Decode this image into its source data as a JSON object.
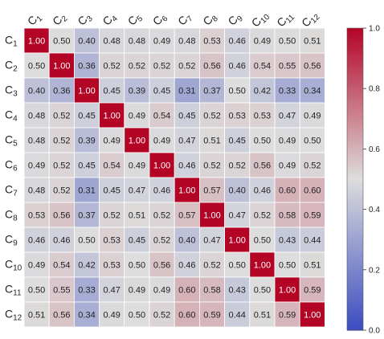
{
  "chart_data": {
    "type": "heatmap",
    "title": "",
    "xlabel": "",
    "ylabel": "",
    "labels": [
      {
        "base": "C",
        "sub": "1"
      },
      {
        "base": "C",
        "sub": "2"
      },
      {
        "base": "C",
        "sub": "3"
      },
      {
        "base": "C",
        "sub": "4"
      },
      {
        "base": "C",
        "sub": "5"
      },
      {
        "base": "C",
        "sub": "6"
      },
      {
        "base": "C",
        "sub": "7"
      },
      {
        "base": "C",
        "sub": "8"
      },
      {
        "base": "C",
        "sub": "9"
      },
      {
        "base": "C",
        "sub": "10"
      },
      {
        "base": "C",
        "sub": "11"
      },
      {
        "base": "C",
        "sub": "12"
      }
    ],
    "matrix": [
      [
        1.0,
        0.5,
        0.4,
        0.48,
        0.48,
        0.49,
        0.48,
        0.53,
        0.46,
        0.49,
        0.5,
        0.51
      ],
      [
        0.5,
        1.0,
        0.36,
        0.52,
        0.52,
        0.52,
        0.52,
        0.56,
        0.46,
        0.54,
        0.55,
        0.56
      ],
      [
        0.4,
        0.36,
        1.0,
        0.45,
        0.39,
        0.45,
        0.31,
        0.37,
        0.5,
        0.42,
        0.33,
        0.34
      ],
      [
        0.48,
        0.52,
        0.45,
        1.0,
        0.49,
        0.54,
        0.45,
        0.52,
        0.53,
        0.53,
        0.47,
        0.49
      ],
      [
        0.48,
        0.52,
        0.39,
        0.49,
        1.0,
        0.49,
        0.47,
        0.51,
        0.45,
        0.5,
        0.49,
        0.5
      ],
      [
        0.49,
        0.52,
        0.45,
        0.54,
        0.49,
        1.0,
        0.46,
        0.52,
        0.52,
        0.56,
        0.49,
        0.52
      ],
      [
        0.48,
        0.52,
        0.31,
        0.45,
        0.47,
        0.46,
        1.0,
        0.57,
        0.4,
        0.46,
        0.6,
        0.6
      ],
      [
        0.53,
        0.56,
        0.37,
        0.52,
        0.51,
        0.52,
        0.57,
        1.0,
        0.47,
        0.52,
        0.58,
        0.59
      ],
      [
        0.46,
        0.46,
        0.5,
        0.53,
        0.45,
        0.52,
        0.4,
        0.47,
        1.0,
        0.5,
        0.43,
        0.44
      ],
      [
        0.49,
        0.54,
        0.42,
        0.53,
        0.5,
        0.56,
        0.46,
        0.52,
        0.5,
        1.0,
        0.5,
        0.51
      ],
      [
        0.5,
        0.55,
        0.33,
        0.47,
        0.49,
        0.49,
        0.6,
        0.58,
        0.43,
        0.5,
        1.0,
        0.59
      ],
      [
        0.51,
        0.56,
        0.34,
        0.49,
        0.5,
        0.52,
        0.6,
        0.59,
        0.44,
        0.51,
        0.59,
        1.0
      ]
    ],
    "value_format": "0.00",
    "colormap": "coolwarm",
    "colormap_stops": [
      "#3b4cc0",
      "#dddddd",
      "#b40426"
    ],
    "vmin": 0.0,
    "vmax": 1.0,
    "colorbar": {
      "ticks": [
        0.0,
        0.2,
        0.4,
        0.6,
        0.8,
        1.0
      ],
      "tick_labels": [
        "0.0",
        "0.2",
        "0.4",
        "0.6",
        "0.8",
        "1.0"
      ],
      "placement": "right"
    },
    "x_tick_rotation": "diagonal",
    "grid": true,
    "grid_color": "#ffffff",
    "text_color_dark": "#222222",
    "text_color_light": "#ffffff"
  }
}
